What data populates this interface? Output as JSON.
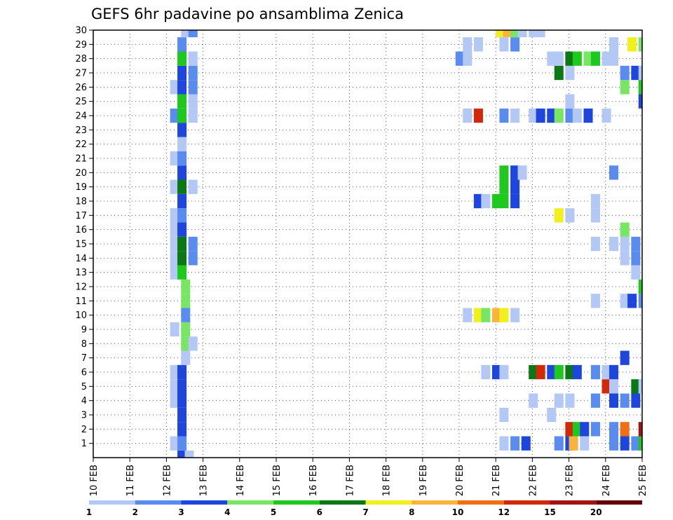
{
  "chart_data": {
    "type": "heatmap",
    "title": "GEFS 6hr padavine po ansamblima Zenica",
    "xlabel": "",
    "ylabel": "",
    "x_tick_labels": [
      "10 FEB",
      "11 FEB",
      "12 FEB",
      "13 FEB",
      "14 FEB",
      "15 FEB",
      "16 FEB",
      "17 FEB",
      "18 FEB",
      "19 FEB",
      "20 FEB",
      "21 FEB",
      "22 FEB",
      "23 FEB",
      "24 FEB",
      "25 FEB"
    ],
    "y_tick_labels": [
      "1",
      "2",
      "3",
      "4",
      "5",
      "6",
      "7",
      "8",
      "9",
      "10",
      "11",
      "12",
      "13",
      "14",
      "15",
      "16",
      "17",
      "18",
      "19",
      "20",
      "21",
      "22",
      "23",
      "24",
      "25",
      "26",
      "27",
      "28",
      "29",
      "30"
    ],
    "x_range_steps": [
      0,
      60
    ],
    "y_range": [
      0,
      30
    ],
    "grid": true,
    "legend": {
      "position": "bottom",
      "labels": [
        "1",
        "2",
        "3",
        "4",
        "5",
        "6",
        "7",
        "8",
        "10",
        "12",
        "15",
        "20"
      ],
      "colors": [
        "#b4c8f5",
        "#5a8cf0",
        "#1e46dc",
        "#78e664",
        "#1ec81e",
        "#0a7814",
        "#f0f01e",
        "#fab43c",
        "#f06e14",
        "#d2280a",
        "#a01414",
        "#64000a"
      ]
    },
    "cells": [
      [
        0,
        12.3,
        0,
        3
      ],
      [
        0,
        12.5,
        0,
        1
      ],
      [
        1,
        12.1,
        1,
        1
      ],
      [
        1,
        12.3,
        1,
        2
      ],
      [
        1,
        21.1,
        1,
        1
      ],
      [
        1,
        21.4,
        1,
        2
      ],
      [
        1,
        21.7,
        1,
        3
      ],
      [
        1,
        22.6,
        1,
        2
      ],
      [
        1,
        22.9,
        1,
        3
      ],
      [
        1,
        23.0,
        1,
        8
      ],
      [
        1,
        23.3,
        1,
        1
      ],
      [
        1,
        24.1,
        1,
        2
      ],
      [
        1,
        24.4,
        1,
        3
      ],
      [
        1,
        24.7,
        1,
        2
      ],
      [
        1,
        24.9,
        1,
        5
      ],
      [
        2,
        12.3,
        2,
        3
      ],
      [
        2,
        22.9,
        2,
        10
      ],
      [
        2,
        23.1,
        2,
        5
      ],
      [
        2,
        23.3,
        2,
        3
      ],
      [
        2,
        23.6,
        2,
        2
      ],
      [
        2,
        24.1,
        2,
        2
      ],
      [
        2,
        24.4,
        2,
        9
      ],
      [
        2,
        24.9,
        2,
        11
      ],
      [
        3,
        12.3,
        3,
        3
      ],
      [
        3,
        21.1,
        3,
        1
      ],
      [
        3,
        22.4,
        3,
        1
      ],
      [
        4,
        12.1,
        4,
        1
      ],
      [
        4,
        12.3,
        4,
        3
      ],
      [
        4,
        21.9,
        4,
        1
      ],
      [
        4,
        22.6,
        4,
        1
      ],
      [
        4,
        22.9,
        4,
        1
      ],
      [
        4,
        23.6,
        4,
        2
      ],
      [
        4,
        24.1,
        4,
        3
      ],
      [
        4,
        24.4,
        4,
        2
      ],
      [
        4,
        24.7,
        4,
        3
      ],
      [
        5,
        12.1,
        5,
        1
      ],
      [
        5,
        12.3,
        5,
        3
      ],
      [
        5,
        23.9,
        5,
        10
      ],
      [
        5,
        24.1,
        5,
        1
      ],
      [
        5,
        24.7,
        5,
        6
      ],
      [
        5,
        24.9,
        5,
        1
      ],
      [
        6,
        12.1,
        6,
        1
      ],
      [
        6,
        12.3,
        6,
        3
      ],
      [
        6,
        20.6,
        6,
        1
      ],
      [
        6,
        20.9,
        6,
        3
      ],
      [
        6,
        21.1,
        6,
        1
      ],
      [
        6,
        21.9,
        6,
        6
      ],
      [
        6,
        22.1,
        6,
        10
      ],
      [
        6,
        22.4,
        6,
        3
      ],
      [
        6,
        22.6,
        6,
        5
      ],
      [
        6,
        22.9,
        6,
        6
      ],
      [
        6,
        23.1,
        6,
        3
      ],
      [
        6,
        23.6,
        6,
        2
      ],
      [
        6,
        23.9,
        6,
        1
      ],
      [
        6,
        24.1,
        6,
        3
      ],
      [
        7,
        12.4,
        7,
        1
      ],
      [
        7,
        24.4,
        7,
        3
      ],
      [
        8,
        12.4,
        8,
        4
      ],
      [
        8,
        12.6,
        8,
        1
      ],
      [
        9,
        12.1,
        9,
        1
      ],
      [
        9,
        12.4,
        9,
        4
      ],
      [
        10,
        12.4,
        10,
        2
      ],
      [
        10,
        20.1,
        10,
        1
      ],
      [
        10,
        20.4,
        10,
        7
      ],
      [
        10,
        20.6,
        10,
        4
      ],
      [
        10,
        20.9,
        10,
        8
      ],
      [
        10,
        21.1,
        10,
        7
      ],
      [
        10,
        21.4,
        10,
        1
      ],
      [
        11,
        12.4,
        11,
        4
      ],
      [
        11,
        23.6,
        11,
        1
      ],
      [
        11,
        24.4,
        11,
        1
      ],
      [
        11,
        24.6,
        11,
        3
      ],
      [
        11,
        24.9,
        11,
        2
      ],
      [
        12,
        12.4,
        12,
        4
      ],
      [
        12,
        24.9,
        12,
        5
      ],
      [
        13,
        12.1,
        13,
        1
      ],
      [
        13,
        12.3,
        13,
        5
      ],
      [
        13,
        24.7,
        13,
        1
      ],
      [
        14,
        12.1,
        14,
        1
      ],
      [
        14,
        12.3,
        14,
        6
      ],
      [
        14,
        12.6,
        14,
        2
      ],
      [
        14,
        24.4,
        14,
        1
      ],
      [
        14,
        24.7,
        14,
        2
      ],
      [
        15,
        12.1,
        15,
        1
      ],
      [
        15,
        12.3,
        15,
        6
      ],
      [
        15,
        12.6,
        15,
        2
      ],
      [
        15,
        23.6,
        15,
        1
      ],
      [
        15,
        24.1,
        15,
        1
      ],
      [
        15,
        24.4,
        15,
        1
      ],
      [
        15,
        24.7,
        15,
        2
      ],
      [
        16,
        12.1,
        16,
        1
      ],
      [
        16,
        12.3,
        16,
        3
      ],
      [
        16,
        24.4,
        16,
        4
      ],
      [
        17,
        12.1,
        17,
        1
      ],
      [
        17,
        12.3,
        17,
        2
      ],
      [
        17,
        22.6,
        17,
        7
      ],
      [
        17,
        22.9,
        17,
        1
      ],
      [
        17,
        23.6,
        17,
        1
      ],
      [
        18,
        12.3,
        18,
        3
      ],
      [
        18,
        20.4,
        18,
        3
      ],
      [
        18,
        20.6,
        18,
        1
      ],
      [
        18,
        20.9,
        18,
        5
      ],
      [
        18,
        21.1,
        18,
        5
      ],
      [
        18,
        21.4,
        18,
        3
      ],
      [
        18,
        23.6,
        18,
        1
      ],
      [
        19,
        12.1,
        19,
        1
      ],
      [
        19,
        12.3,
        19,
        6
      ],
      [
        19,
        12.6,
        19,
        1
      ],
      [
        19,
        21.1,
        19,
        5
      ],
      [
        19,
        21.4,
        19,
        3
      ],
      [
        20,
        12.3,
        20,
        3
      ],
      [
        20,
        21.1,
        20,
        5
      ],
      [
        20,
        21.4,
        20,
        3
      ],
      [
        20,
        21.6,
        20,
        1
      ],
      [
        20,
        24.1,
        20,
        2
      ],
      [
        21,
        12.1,
        21,
        1
      ],
      [
        21,
        12.3,
        21,
        2
      ],
      [
        22,
        12.3,
        22,
        1
      ],
      [
        23,
        12.3,
        23,
        3
      ],
      [
        24,
        12.1,
        24,
        2
      ],
      [
        24,
        12.3,
        24,
        5
      ],
      [
        24,
        12.6,
        24,
        1
      ],
      [
        24,
        20.1,
        24,
        1
      ],
      [
        24,
        20.4,
        24,
        10
      ],
      [
        24,
        21.1,
        24,
        2
      ],
      [
        24,
        21.4,
        24,
        1
      ],
      [
        24,
        21.9,
        24,
        1
      ],
      [
        24,
        22.1,
        24,
        3
      ],
      [
        24,
        22.4,
        24,
        3
      ],
      [
        24,
        22.6,
        24,
        4
      ],
      [
        24,
        22.9,
        24,
        2
      ],
      [
        24,
        23.1,
        24,
        1
      ],
      [
        24,
        23.4,
        24,
        3
      ],
      [
        24,
        23.9,
        24,
        1
      ],
      [
        25,
        12.3,
        25,
        5
      ],
      [
        25,
        12.6,
        25,
        1
      ],
      [
        25,
        22.9,
        25,
        1
      ],
      [
        25,
        24.9,
        25,
        3
      ],
      [
        26,
        12.1,
        26,
        1
      ],
      [
        26,
        12.3,
        26,
        3
      ],
      [
        26,
        12.6,
        26,
        2
      ],
      [
        26,
        24.4,
        26,
        4
      ],
      [
        26,
        24.9,
        26,
        5
      ],
      [
        27,
        12.3,
        27,
        3
      ],
      [
        27,
        12.6,
        27,
        2
      ],
      [
        27,
        22.6,
        27,
        6
      ],
      [
        27,
        22.9,
        27,
        1
      ],
      [
        27,
        24.4,
        27,
        2
      ],
      [
        27,
        24.7,
        27,
        3
      ],
      [
        27,
        24.9,
        27,
        1
      ],
      [
        28,
        12.3,
        28,
        5
      ],
      [
        28,
        12.6,
        28,
        1
      ],
      [
        28,
        19.9,
        28,
        2
      ],
      [
        28,
        20.1,
        28,
        1
      ],
      [
        28,
        22.4,
        28,
        1
      ],
      [
        28,
        22.6,
        28,
        1
      ],
      [
        28,
        22.9,
        28,
        6
      ],
      [
        28,
        23.1,
        28,
        5
      ],
      [
        28,
        23.4,
        28,
        4
      ],
      [
        28,
        23.6,
        28,
        5
      ],
      [
        28,
        23.9,
        28,
        1
      ],
      [
        28,
        24.1,
        28,
        1
      ],
      [
        29,
        12.3,
        29,
        2
      ],
      [
        29,
        20.1,
        29,
        1
      ],
      [
        29,
        20.4,
        29,
        1
      ],
      [
        29,
        21.1,
        29,
        1
      ],
      [
        29,
        21.4,
        29,
        2
      ],
      [
        29,
        24.1,
        29,
        1
      ],
      [
        29,
        24.6,
        29,
        7
      ],
      [
        29,
        24.9,
        29,
        4
      ],
      [
        30,
        12.4,
        30,
        1
      ],
      [
        30,
        12.6,
        30,
        2
      ],
      [
        30,
        21.0,
        30,
        7
      ],
      [
        30,
        21.2,
        30,
        8
      ],
      [
        30,
        21.4,
        30,
        4
      ],
      [
        30,
        21.6,
        30,
        1
      ],
      [
        30,
        21.9,
        30,
        1
      ],
      [
        30,
        22.1,
        30,
        1
      ]
    ]
  }
}
